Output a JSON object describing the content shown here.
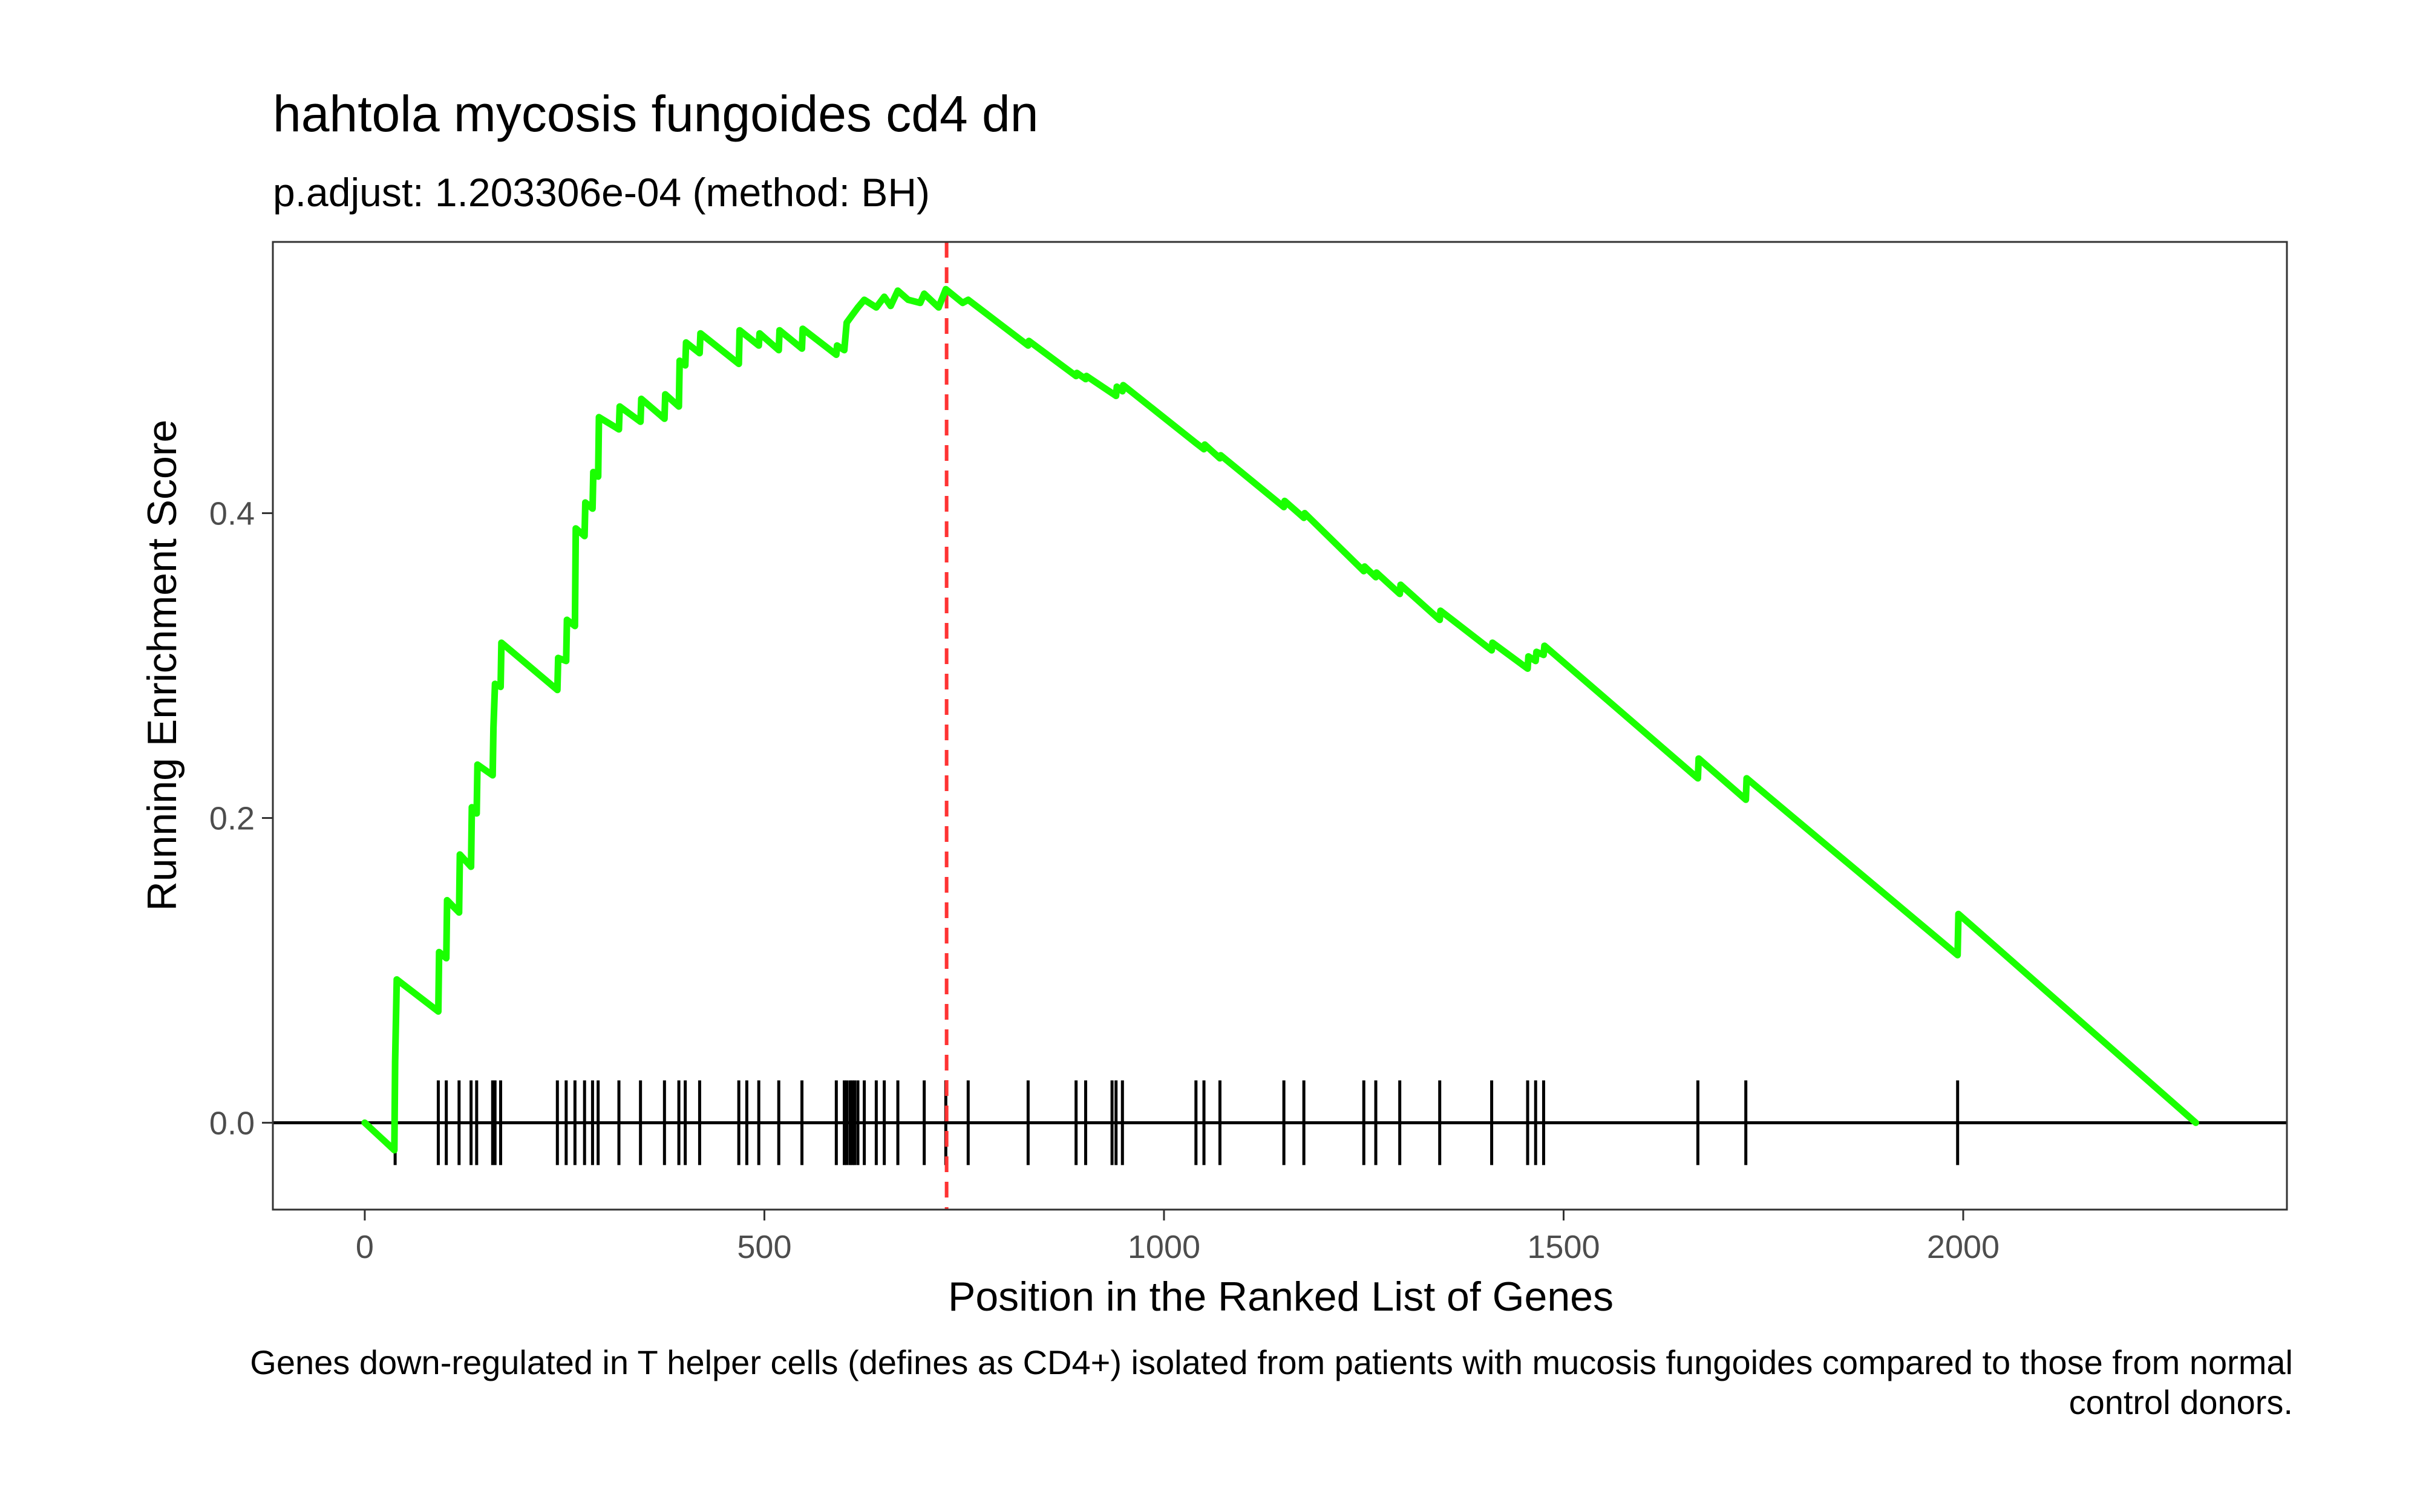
{
  "chart_data": {
    "type": "line",
    "title": "hahtola mycosis fungoides cd4 dn",
    "subtitle": "p.adjust: 1.203306e-04 (method: BH)",
    "xlabel": "Position in the Ranked List of Genes",
    "ylabel": "Running Enrichment Score",
    "caption": "Genes down-regulated in T helper cells (defines as CD4+) isolated from patients with mucosis fungoides compared to those from normal control donors.",
    "xlim": [
      -115,
      2405
    ],
    "ylim": [
      -0.057,
      0.578
    ],
    "x_ticks": [
      0,
      500,
      1000,
      1500,
      2000
    ],
    "x_tick_labels": [
      "0",
      "500",
      "1000",
      "1500",
      "2000"
    ],
    "y_ticks": [
      0.0,
      0.2,
      0.4
    ],
    "y_tick_labels": [
      "0.0",
      "0.2",
      "0.4"
    ],
    "grid": false,
    "colors": {
      "running_score": "#1aff00",
      "peak_line": "#ff3333",
      "hits": "#000000",
      "zero_line": "#000000"
    },
    "peak_position": 728,
    "series": [
      {
        "points": [
          [
            0,
            0.0
          ],
          [
            37,
            -0.018
          ],
          [
            38,
            0.04
          ],
          [
            40,
            0.094
          ],
          [
            92,
            0.073
          ],
          [
            93,
            0.112
          ],
          [
            102,
            0.108
          ],
          [
            103,
            0.146
          ],
          [
            118,
            0.138
          ],
          [
            119,
            0.176
          ],
          [
            133,
            0.168
          ],
          [
            134,
            0.207
          ],
          [
            140,
            0.203
          ],
          [
            141,
            0.235
          ],
          [
            160,
            0.228
          ],
          [
            161,
            0.259
          ],
          [
            163,
            0.288
          ],
          [
            170,
            0.286
          ],
          [
            171,
            0.315
          ],
          [
            241,
            0.284
          ],
          [
            242,
            0.305
          ],
          [
            252,
            0.303
          ],
          [
            253,
            0.33
          ],
          [
            263,
            0.326
          ],
          [
            264,
            0.39
          ],
          [
            275,
            0.385
          ],
          [
            276,
            0.407
          ],
          [
            285,
            0.403
          ],
          [
            286,
            0.427
          ],
          [
            292,
            0.424
          ],
          [
            293,
            0.463
          ],
          [
            318,
            0.455
          ],
          [
            319,
            0.47
          ],
          [
            345,
            0.46
          ],
          [
            346,
            0.475
          ],
          [
            375,
            0.462
          ],
          [
            376,
            0.478
          ],
          [
            393,
            0.47
          ],
          [
            394,
            0.5
          ],
          [
            401,
            0.497
          ],
          [
            402,
            0.512
          ],
          [
            419,
            0.505
          ],
          [
            420,
            0.518
          ],
          [
            468,
            0.498
          ],
          [
            469,
            0.52
          ],
          [
            493,
            0.51
          ],
          [
            494,
            0.518
          ],
          [
            518,
            0.507
          ],
          [
            519,
            0.52
          ],
          [
            547,
            0.508
          ],
          [
            548,
            0.521
          ],
          [
            590,
            0.504
          ],
          [
            591,
            0.51
          ],
          [
            600,
            0.507
          ],
          [
            603,
            0.525
          ],
          [
            610,
            0.53
          ],
          [
            617,
            0.535
          ],
          [
            625,
            0.54
          ],
          [
            640,
            0.535
          ],
          [
            650,
            0.542
          ],
          [
            658,
            0.536
          ],
          [
            667,
            0.546
          ],
          [
            680,
            0.54
          ],
          [
            695,
            0.538
          ],
          [
            700,
            0.544
          ],
          [
            718,
            0.535
          ],
          [
            727,
            0.547
          ],
          [
            748,
            0.538
          ],
          [
            755,
            0.54
          ],
          [
            830,
            0.51
          ],
          [
            831,
            0.513
          ],
          [
            890,
            0.49
          ],
          [
            891,
            0.492
          ],
          [
            902,
            0.488
          ],
          [
            903,
            0.49
          ],
          [
            940,
            0.477
          ],
          [
            941,
            0.483
          ],
          [
            948,
            0.48
          ],
          [
            949,
            0.484
          ],
          [
            1040,
            0.446
          ],
          [
            1050,
            0.442
          ],
          [
            1051,
            0.445
          ],
          [
            1070,
            0.436
          ],
          [
            1071,
            0.438
          ],
          [
            1150,
            0.404
          ],
          [
            1151,
            0.408
          ],
          [
            1175,
            0.397
          ],
          [
            1176,
            0.4
          ],
          [
            1250,
            0.362
          ],
          [
            1251,
            0.365
          ],
          [
            1265,
            0.358
          ],
          [
            1266,
            0.361
          ],
          [
            1295,
            0.347
          ],
          [
            1296,
            0.353
          ],
          [
            1345,
            0.33
          ],
          [
            1346,
            0.336
          ],
          [
            1410,
            0.31
          ],
          [
            1411,
            0.315
          ],
          [
            1455,
            0.298
          ],
          [
            1456,
            0.306
          ],
          [
            1465,
            0.303
          ],
          [
            1466,
            0.309
          ],
          [
            1475,
            0.307
          ],
          [
            1476,
            0.313
          ],
          [
            1668,
            0.226
          ],
          [
            1669,
            0.239
          ],
          [
            1728,
            0.212
          ],
          [
            1729,
            0.226
          ],
          [
            1993,
            0.11
          ],
          [
            1994,
            0.137
          ],
          [
            2291,
            0.0
          ]
        ]
      }
    ],
    "hits": [
      38,
      92,
      102,
      118,
      133,
      140,
      160,
      163,
      170,
      241,
      252,
      263,
      275,
      285,
      292,
      318,
      345,
      375,
      393,
      401,
      419,
      468,
      478,
      493,
      518,
      547,
      590,
      600,
      603,
      607,
      610,
      613,
      617,
      625,
      640,
      650,
      667,
      700,
      727,
      755,
      830,
      890,
      902,
      935,
      940,
      948,
      1040,
      1050,
      1070,
      1150,
      1175,
      1250,
      1265,
      1295,
      1345,
      1410,
      1455,
      1465,
      1475,
      1668,
      1728,
      1993
    ]
  }
}
